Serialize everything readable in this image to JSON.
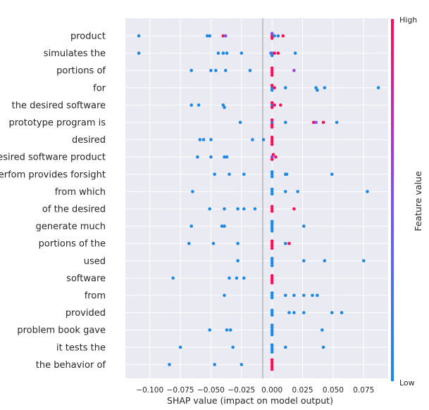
{
  "chart_data": {
    "type": "scatter",
    "subtype": "shap-summary-beeswarm",
    "xlabel": "SHAP value (impact on model output)",
    "xlim": [
      -0.12,
      0.095
    ],
    "xticks": [
      -0.1,
      -0.075,
      -0.05,
      -0.025,
      0.0,
      0.025,
      0.05,
      0.075
    ],
    "xtick_labels": [
      "−0.100",
      "−0.075",
      "−0.050",
      "−0.025",
      "0.000",
      "0.025",
      "0.050",
      "0.075"
    ],
    "grid": true,
    "colorbar": {
      "label": "Feature value",
      "high_label": "High",
      "low_label": "Low",
      "low_color": "#1e88e5",
      "high_color": "#ff0d57"
    },
    "features": [
      {
        "name": "product",
        "points": [
          [
            -0.109,
            0
          ],
          [
            -0.053,
            0
          ],
          [
            -0.051,
            0
          ],
          [
            -0.04,
            1
          ],
          [
            -0.038,
            0.5
          ],
          [
            0.0,
            1
          ],
          [
            0.0,
            1
          ],
          [
            0.0,
            0.5
          ],
          [
            0.002,
            0
          ],
          [
            0.005,
            0
          ],
          [
            0.009,
            1
          ]
        ]
      },
      {
        "name": "simulates the",
        "points": [
          [
            -0.109,
            0
          ],
          [
            -0.044,
            0
          ],
          [
            -0.04,
            0
          ],
          [
            -0.037,
            0
          ],
          [
            -0.025,
            0
          ],
          [
            -0.001,
            0.5
          ],
          [
            0.0,
            0
          ],
          [
            0.0,
            0
          ],
          [
            0.002,
            1
          ],
          [
            0.005,
            1
          ],
          [
            0.019,
            0
          ]
        ]
      },
      {
        "name": "portions of",
        "points": [
          [
            -0.066,
            0
          ],
          [
            -0.05,
            0
          ],
          [
            -0.046,
            0
          ],
          [
            -0.038,
            0
          ],
          [
            -0.018,
            0
          ],
          [
            0.0,
            1
          ],
          [
            0.0,
            1
          ],
          [
            0.0,
            1
          ],
          [
            0.0,
            1
          ],
          [
            0.018,
            0.6
          ]
        ]
      },
      {
        "name": "for",
        "points": [
          [
            0.0,
            0
          ],
          [
            0.0,
            0
          ],
          [
            0.0,
            1
          ],
          [
            0.002,
            1
          ],
          [
            0.011,
            0
          ],
          [
            0.036,
            0
          ],
          [
            0.037,
            0
          ],
          [
            0.043,
            0
          ],
          [
            0.087,
            0
          ]
        ]
      },
      {
        "name": "the desired software",
        "points": [
          [
            -0.066,
            0
          ],
          [
            -0.06,
            0
          ],
          [
            -0.04,
            0
          ],
          [
            -0.039,
            0
          ],
          [
            0.0,
            0
          ],
          [
            0.0,
            1
          ],
          [
            0.0,
            1
          ],
          [
            0.002,
            1
          ],
          [
            0.007,
            1
          ]
        ]
      },
      {
        "name": "prototype program is",
        "points": [
          [
            -0.026,
            0
          ],
          [
            0.0,
            0
          ],
          [
            0.0,
            1
          ],
          [
            0.0,
            1
          ],
          [
            0.0,
            1
          ],
          [
            0.011,
            0
          ],
          [
            0.034,
            1
          ],
          [
            0.036,
            0.5
          ],
          [
            0.042,
            1
          ],
          [
            0.053,
            0
          ]
        ]
      },
      {
        "name": "desired",
        "points": [
          [
            -0.059,
            0
          ],
          [
            -0.056,
            0
          ],
          [
            -0.05,
            0
          ],
          [
            -0.016,
            0
          ],
          [
            -0.007,
            0
          ],
          [
            0.0,
            1
          ],
          [
            0.0,
            1
          ],
          [
            0.0,
            1
          ],
          [
            0.0,
            1
          ]
        ]
      },
      {
        "name": "desired software product",
        "points": [
          [
            -0.061,
            0
          ],
          [
            -0.05,
            0
          ],
          [
            -0.039,
            0
          ],
          [
            -0.037,
            0
          ],
          [
            0.0,
            0.5
          ],
          [
            0.0,
            1
          ],
          [
            0.001,
            1
          ],
          [
            0.003,
            1
          ]
        ]
      },
      {
        "name": "perfom provides forsight",
        "points": [
          [
            -0.047,
            0
          ],
          [
            -0.035,
            0
          ],
          [
            -0.023,
            0
          ],
          [
            0.0,
            0
          ],
          [
            0.0,
            0
          ],
          [
            0.0,
            0
          ],
          [
            0.011,
            0
          ],
          [
            0.012,
            0
          ],
          [
            0.049,
            0
          ]
        ]
      },
      {
        "name": "from which",
        "points": [
          [
            -0.065,
            0
          ],
          [
            0.0,
            0
          ],
          [
            0.0,
            0
          ],
          [
            0.0,
            0
          ],
          [
            0.011,
            0
          ],
          [
            0.021,
            0
          ],
          [
            0.078,
            0
          ]
        ]
      },
      {
        "name": "of the desired",
        "points": [
          [
            -0.051,
            0
          ],
          [
            -0.039,
            0
          ],
          [
            -0.028,
            0
          ],
          [
            -0.023,
            0
          ],
          [
            -0.014,
            0
          ],
          [
            0.0,
            1
          ],
          [
            0.0,
            1
          ],
          [
            0.0,
            1
          ],
          [
            0.018,
            1
          ]
        ]
      },
      {
        "name": "generate much",
        "points": [
          [
            -0.066,
            0
          ],
          [
            -0.041,
            0
          ],
          [
            -0.039,
            0
          ],
          [
            0.0,
            0
          ],
          [
            0.0,
            0
          ],
          [
            0.0,
            0
          ],
          [
            0.0,
            0
          ],
          [
            0.0,
            0
          ],
          [
            0.026,
            0
          ]
        ]
      },
      {
        "name": "portions of the",
        "points": [
          [
            -0.068,
            0
          ],
          [
            -0.048,
            0
          ],
          [
            -0.028,
            0
          ],
          [
            0.0,
            1
          ],
          [
            0.0,
            1
          ],
          [
            0.0,
            1
          ],
          [
            0.0,
            1
          ],
          [
            0.011,
            0
          ],
          [
            0.014,
            1
          ]
        ]
      },
      {
        "name": "used",
        "points": [
          [
            -0.028,
            0
          ],
          [
            0.0,
            0
          ],
          [
            0.0,
            0
          ],
          [
            0.0,
            0
          ],
          [
            0.0,
            0
          ],
          [
            0.026,
            0
          ],
          [
            0.043,
            0
          ],
          [
            0.075,
            0
          ]
        ]
      },
      {
        "name": "software",
        "points": [
          [
            -0.081,
            0
          ],
          [
            -0.035,
            0
          ],
          [
            -0.029,
            0
          ],
          [
            -0.023,
            0
          ],
          [
            0.0,
            1
          ],
          [
            0.0,
            1
          ],
          [
            0.0,
            1
          ],
          [
            0.0,
            1
          ]
        ]
      },
      {
        "name": "from",
        "points": [
          [
            -0.039,
            0
          ],
          [
            0.0,
            0
          ],
          [
            0.0,
            0
          ],
          [
            0.0,
            0
          ],
          [
            0.011,
            0
          ],
          [
            0.018,
            0
          ],
          [
            0.026,
            0
          ],
          [
            0.033,
            0
          ],
          [
            0.037,
            0
          ]
        ]
      },
      {
        "name": "provided",
        "points": [
          [
            0.0,
            0
          ],
          [
            0.0,
            0
          ],
          [
            0.0,
            0
          ],
          [
            0.014,
            0
          ],
          [
            0.018,
            0
          ],
          [
            0.026,
            0
          ],
          [
            0.049,
            0
          ],
          [
            0.057,
            0
          ]
        ]
      },
      {
        "name": "problem book gave",
        "points": [
          [
            -0.051,
            0
          ],
          [
            -0.037,
            0
          ],
          [
            -0.034,
            0
          ],
          [
            0.0,
            0
          ],
          [
            0.0,
            0
          ],
          [
            0.0,
            0
          ],
          [
            0.0,
            0
          ],
          [
            0.0,
            0
          ],
          [
            0.041,
            0
          ]
        ]
      },
      {
        "name": "it tests the",
        "points": [
          [
            -0.075,
            0
          ],
          [
            -0.032,
            0
          ],
          [
            0.0,
            0
          ],
          [
            0.0,
            0
          ],
          [
            0.0,
            0
          ],
          [
            0.0,
            0
          ],
          [
            0.011,
            0
          ],
          [
            0.042,
            0
          ]
        ]
      },
      {
        "name": "the behavior of",
        "points": [
          [
            -0.084,
            0
          ],
          [
            -0.047,
            0
          ],
          [
            -0.025,
            0
          ],
          [
            0.0,
            1
          ],
          [
            0.0,
            1
          ],
          [
            0.0,
            1
          ],
          [
            0.0,
            1
          ],
          [
            0.0,
            1
          ]
        ]
      }
    ]
  }
}
